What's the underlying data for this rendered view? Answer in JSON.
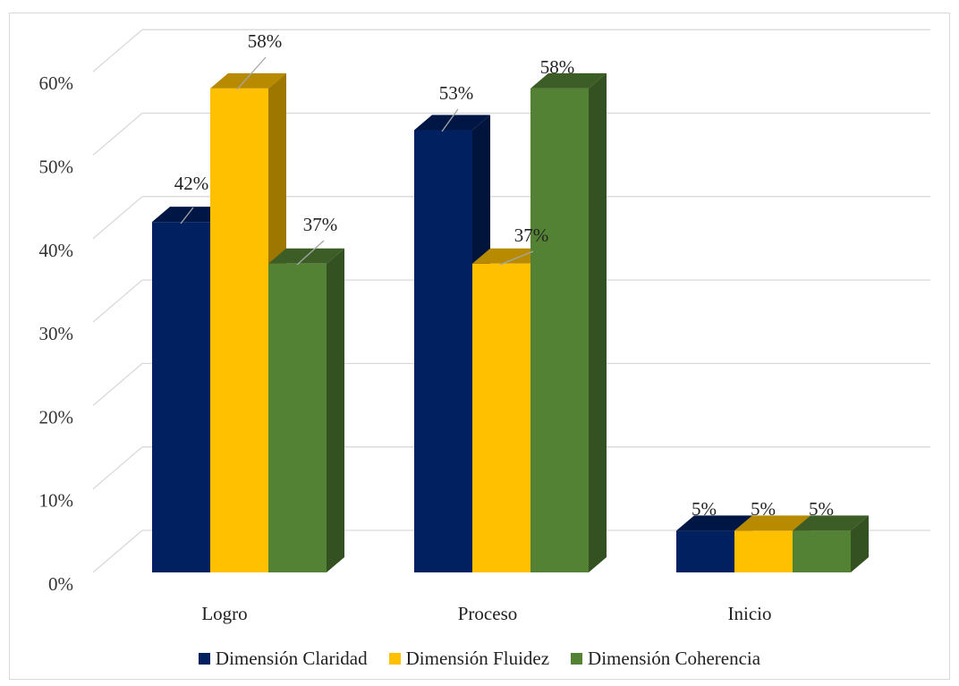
{
  "chart_data": {
    "type": "bar",
    "title": "",
    "xlabel": "",
    "ylabel": "",
    "categories": [
      "Logro",
      "Proceso",
      "Inicio"
    ],
    "series": [
      {
        "name": "Dimensión Claridad",
        "values": [
          42,
          53,
          5
        ],
        "labels": [
          "42%",
          "53%",
          "5%"
        ],
        "color": "#002060"
      },
      {
        "name": "Dimensión Fluidez",
        "values": [
          58,
          37,
          5
        ],
        "labels": [
          "58%",
          "37%",
          "5%"
        ],
        "color": "#FFC000"
      },
      {
        "name": "Dimensión Coherencia",
        "values": [
          37,
          58,
          5
        ],
        "labels": [
          "37%",
          "58%",
          "5%"
        ],
        "color": "#548235"
      }
    ],
    "ylim": [
      0,
      60
    ],
    "yticks": [
      "0%",
      "10%",
      "20%",
      "30%",
      "40%",
      "50%",
      "60%"
    ],
    "grid": true,
    "legend_position": "bottom",
    "three_d": true
  }
}
